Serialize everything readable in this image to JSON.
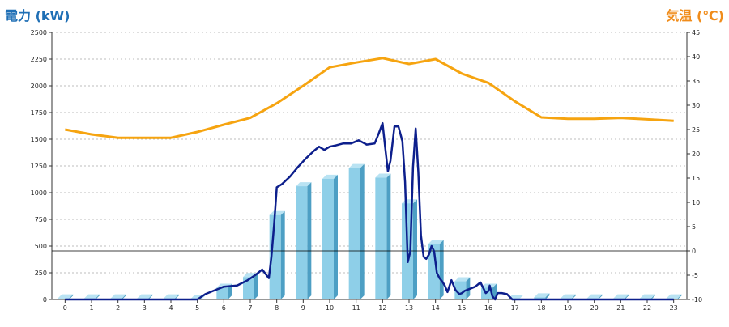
{
  "chart_data": {
    "type": "bar",
    "left_axis_title": "電力 (kW)",
    "right_axis_title": "気温 (℃)",
    "categories": [
      "0",
      "1",
      "2",
      "3",
      "4",
      "5",
      "6",
      "7",
      "8",
      "9",
      "10",
      "11",
      "12",
      "13",
      "14",
      "15",
      "16",
      "17",
      "18",
      "19",
      "20",
      "21",
      "22",
      "23"
    ],
    "y_left": {
      "min": 0,
      "max": 2500,
      "ticks": [
        0,
        250,
        500,
        750,
        1000,
        1250,
        1500,
        1750,
        2000,
        2250,
        2500
      ]
    },
    "y_right": {
      "min": -10,
      "max": 45,
      "ticks": [
        -10,
        -5,
        0,
        5,
        10,
        15,
        20,
        25,
        30,
        35,
        40,
        45
      ]
    },
    "grid": true,
    "reference_line_right_axis": 0,
    "colors": {
      "bar": "#8ecfe8",
      "bar_side": "#4d9fc4",
      "bar_top": "#b9e3f3",
      "power_line": "#0d1f8c",
      "temp_line": "#f6a410",
      "left_title": "#1f6fb5",
      "right_title": "#f08c1a"
    },
    "series": [
      {
        "kind": "bar",
        "axis": "left",
        "values": [
          10,
          10,
          10,
          10,
          10,
          0,
          110,
          210,
          790,
          1060,
          1130,
          1230,
          1140,
          900,
          520,
          170,
          110,
          0,
          20,
          10,
          10,
          10,
          10,
          10
        ]
      },
      {
        "kind": "line",
        "axis": "left",
        "x": [
          0,
          1,
          2,
          3,
          4,
          5,
          5.3,
          5.6,
          6,
          6.5,
          6.9,
          7.2,
          7.45,
          7.7,
          7.8,
          7.9,
          8.0,
          8.2,
          8.5,
          8.8,
          9.1,
          9.4,
          9.6,
          9.8,
          10.0,
          10.2,
          10.5,
          10.8,
          11.1,
          11.4,
          11.7,
          11.85,
          12.0,
          12.1,
          12.2,
          12.3,
          12.45,
          12.6,
          12.75,
          12.85,
          12.95,
          13.05,
          13.15,
          13.25,
          13.35,
          13.45,
          13.55,
          13.65,
          13.75,
          13.85,
          13.95,
          14.05,
          14.15,
          14.25,
          14.35,
          14.45,
          14.6,
          14.75,
          14.9,
          15.0,
          15.1,
          15.3,
          15.5,
          15.7,
          15.9,
          16.0,
          16.05,
          16.15,
          16.25,
          16.35,
          16.5,
          16.7,
          16.9,
          17.0,
          17.2,
          17.4,
          17.6,
          17.8,
          18,
          19,
          20,
          21,
          22,
          23
        ],
        "values": [
          0,
          0,
          0,
          0,
          0,
          0,
          50,
          80,
          120,
          130,
          180,
          230,
          280,
          200,
          400,
          700,
          1050,
          1080,
          1150,
          1240,
          1320,
          1390,
          1430,
          1400,
          1430,
          1440,
          1460,
          1460,
          1490,
          1450,
          1460,
          1550,
          1650,
          1420,
          1200,
          1300,
          1620,
          1620,
          1480,
          1100,
          350,
          450,
          1240,
          1600,
          1200,
          600,
          400,
          380,
          420,
          500,
          450,
          250,
          200,
          170,
          130,
          70,
          180,
          90,
          50,
          60,
          80,
          100,
          120,
          160,
          60,
          80,
          130,
          30,
          0,
          60,
          60,
          50,
          0,
          0,
          0,
          0,
          0,
          0,
          0,
          0,
          0,
          0,
          0,
          0
        ]
      },
      {
        "kind": "line",
        "axis": "right",
        "x": [
          0,
          1,
          2,
          3,
          4,
          5,
          6,
          7,
          8,
          9,
          10,
          11,
          12,
          13,
          14,
          15,
          16,
          17,
          18,
          19,
          20,
          21,
          22,
          23
        ],
        "values": [
          25,
          24,
          23.3,
          23.3,
          23.3,
          24.5,
          26,
          27.4,
          30.4,
          34,
          37.8,
          38.8,
          39.7,
          38.5,
          39.5,
          36.5,
          34.6,
          30.8,
          27.5,
          27.2,
          27.2,
          27.4,
          27.1,
          26.8
        ]
      }
    ]
  }
}
